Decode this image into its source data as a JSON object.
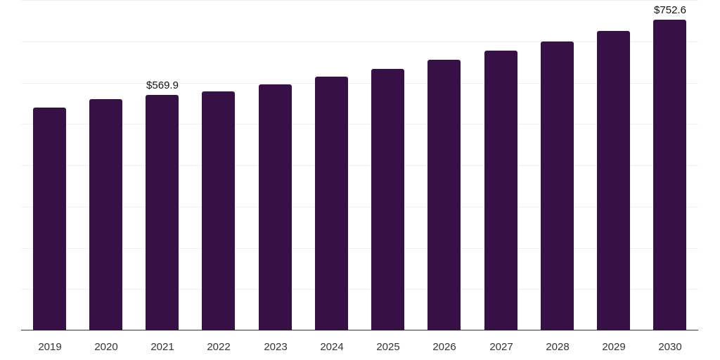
{
  "chart_data": {
    "type": "bar",
    "title": "",
    "xlabel": "",
    "ylabel": "",
    "categories": [
      "2019",
      "2020",
      "2021",
      "2022",
      "2023",
      "2024",
      "2025",
      "2026",
      "2027",
      "2028",
      "2029",
      "2030"
    ],
    "values": [
      539.7,
      560.2,
      569.9,
      578.9,
      595.9,
      614.6,
      633.4,
      655.5,
      677.7,
      699.8,
      725.3,
      752.6
    ],
    "ylim": [
      0,
      800
    ],
    "yticks": [
      0,
      100,
      200,
      300,
      400,
      500,
      600,
      700,
      800
    ],
    "grid": true,
    "y_tick_labels_visible": false,
    "legend": null,
    "annotations": [
      {
        "category": "2021",
        "text": "$569.9"
      },
      {
        "category": "2030",
        "text": "$752.6"
      }
    ],
    "bar_color": "#371146"
  }
}
